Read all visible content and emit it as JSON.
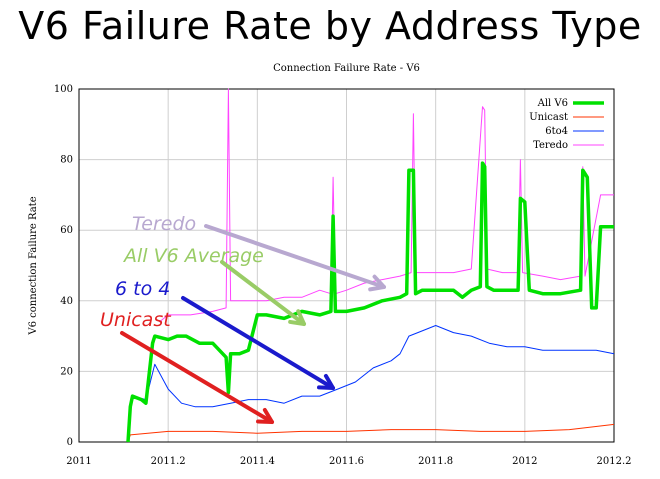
{
  "slide": {
    "title": "V6 Failure Rate by Address Type"
  },
  "chart_data": {
    "type": "line",
    "title": "Connection Failure Rate - V6",
    "xlabel": "",
    "ylabel": "V6 connection Failure Rate",
    "xlim": [
      2011,
      2012.2
    ],
    "ylim": [
      0,
      100
    ],
    "xticks": [
      "2011",
      "2011.2",
      "2011.4",
      "2011.6",
      "2011.8",
      "2012",
      "2012.2"
    ],
    "yticks": [
      "0",
      "20",
      "40",
      "60",
      "80",
      "100"
    ],
    "grid": true,
    "legend_position": "top-right",
    "series": [
      {
        "name": "All V6",
        "color": "#00e000",
        "x": [
          2011.11,
          2011.115,
          2011.12,
          2011.14,
          2011.15,
          2011.165,
          2011.17,
          2011.2,
          2011.22,
          2011.24,
          2011.27,
          2011.3,
          2011.33,
          2011.335,
          2011.34,
          2011.36,
          2011.38,
          2011.4,
          2011.42,
          2011.46,
          2011.5,
          2011.54,
          2011.565,
          2011.57,
          2011.575,
          2011.6,
          2011.64,
          2011.68,
          2011.72,
          2011.735,
          2011.74,
          2011.75,
          2011.755,
          2011.77,
          2011.8,
          2011.84,
          2011.86,
          2011.88,
          2011.9,
          2011.905,
          2011.91,
          2011.915,
          2011.93,
          2011.96,
          2011.985,
          2011.99,
          2012.0,
          2012.01,
          2012.04,
          2012.08,
          2012.125,
          2012.13,
          2012.14,
          2012.15,
          2012.16,
          2012.17,
          2012.2
        ],
        "values": [
          0,
          10,
          13,
          12,
          11,
          28,
          30,
          29,
          30,
          30,
          28,
          28,
          24,
          14,
          25,
          25,
          26,
          36,
          36,
          35,
          37,
          36,
          37,
          64,
          37,
          37,
          38,
          40,
          41,
          42,
          77,
          77,
          42,
          43,
          43,
          43,
          41,
          43,
          44,
          79,
          78,
          44,
          43,
          43,
          43,
          69,
          68,
          43,
          42,
          42,
          43,
          77,
          75,
          38,
          38,
          61,
          61
        ]
      },
      {
        "name": "Unicast",
        "color": "#ff3300",
        "x": [
          2011.11,
          2011.115,
          2011.2,
          2011.3,
          2011.4,
          2011.5,
          2011.6,
          2011.7,
          2011.8,
          2011.9,
          2012.0,
          2012.1,
          2012.2
        ],
        "values": [
          0,
          2,
          3,
          3,
          2.5,
          3,
          3,
          3.5,
          3.5,
          3,
          3,
          3.5,
          5
        ]
      },
      {
        "name": "6to4",
        "color": "#0033ff",
        "x": [
          2011.11,
          2011.115,
          2011.12,
          2011.15,
          2011.17,
          2011.2,
          2011.23,
          2011.26,
          2011.3,
          2011.34,
          2011.38,
          2011.42,
          2011.46,
          2011.5,
          2011.54,
          2011.58,
          2011.62,
          2011.66,
          2011.7,
          2011.72,
          2011.74,
          2011.76,
          2011.8,
          2011.84,
          2011.88,
          2011.92,
          2011.96,
          2012.0,
          2012.04,
          2012.08,
          2012.12,
          2012.16,
          2012.2
        ],
        "values": [
          0,
          10,
          13,
          12,
          22,
          15,
          11,
          10,
          10,
          11,
          12,
          12,
          11,
          13,
          13,
          15,
          17,
          21,
          23,
          25,
          30,
          31,
          33,
          31,
          30,
          28,
          27,
          27,
          26,
          26,
          26,
          26,
          25
        ]
      },
      {
        "name": "Teredo",
        "color": "#ff44ff",
        "x": [
          2011.18,
          2011.2,
          2011.25,
          2011.3,
          2011.33,
          2011.335,
          2011.34,
          2011.38,
          2011.42,
          2011.46,
          2011.5,
          2011.54,
          2011.565,
          2011.57,
          2011.575,
          2011.6,
          2011.64,
          2011.68,
          2011.72,
          2011.745,
          2011.75,
          2011.755,
          2011.8,
          2011.84,
          2011.88,
          2011.905,
          2011.91,
          2011.915,
          2011.95,
          2011.985,
          2011.99,
          2011.995,
          2012.04,
          2012.08,
          2012.125,
          2012.13,
          2012.135,
          2012.17,
          2012.2
        ],
        "values": [
          34,
          36,
          36,
          37,
          38,
          100,
          40,
          40,
          40,
          41,
          41,
          43,
          42,
          75,
          42,
          43,
          45,
          46,
          47,
          48,
          93,
          48,
          48,
          48,
          49,
          95,
          94,
          49,
          48,
          48,
          80,
          48,
          47,
          46,
          47,
          78,
          47,
          70,
          70
        ]
      }
    ],
    "annotations": [
      {
        "text": "Teredo",
        "color": "#b8a8d0"
      },
      {
        "text": "All V6 Average",
        "color": "#99cc66"
      },
      {
        "text": "6 to 4",
        "color": "#1a1acc"
      },
      {
        "text": "Unicast",
        "color": "#e02020"
      }
    ]
  }
}
